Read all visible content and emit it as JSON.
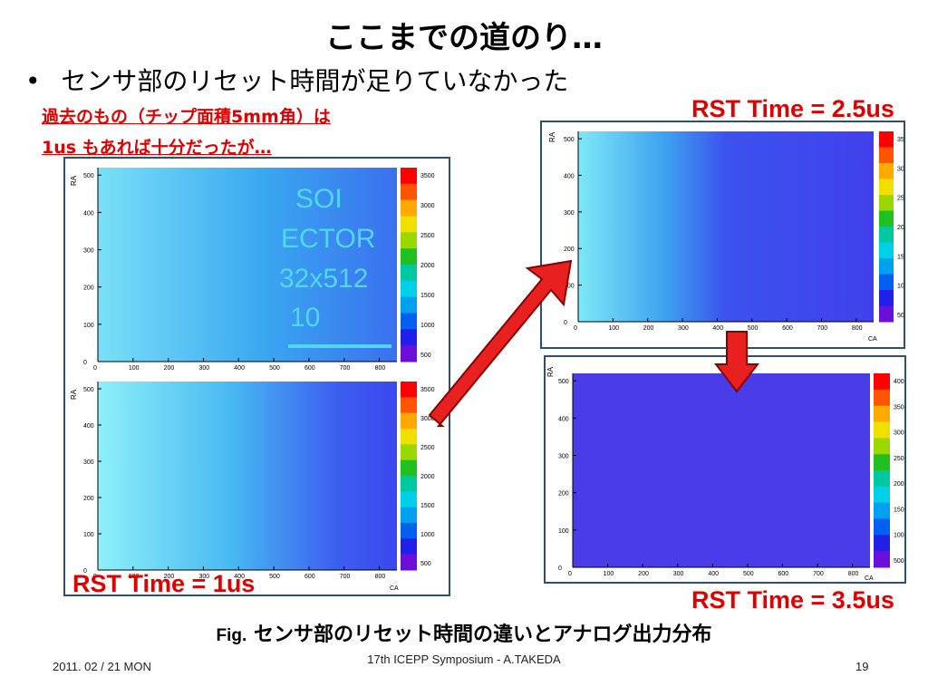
{
  "slide": {
    "title": "ここまでの道のり…",
    "bullet_marker": "•",
    "bullet": "センサ部のリセット時間が足りていなかった",
    "note_line1": "過去のもの（チップ面積5mm角）は",
    "note_line2": "1us もあれば十分だったが…",
    "rst_top_right": "RST Time = 2.5us",
    "rst_bottom_right": "RST Time = 3.5us",
    "rst_left": "RST Time = 1us",
    "caption_prefix": "Fig.",
    "caption": "センサ部のリセット時間の違いとアナログ出力分布",
    "footer_date": "2011. 02 / 21 MON",
    "footer_center": "17th ICEPP Symposium - A.TAKEDA",
    "page_number": "19"
  },
  "plots": {
    "axis_y_label": "RA",
    "axis_x_label": "CA",
    "x_ticks": [
      "0",
      "100",
      "200",
      "300",
      "400",
      "500",
      "600",
      "700",
      "800"
    ],
    "y_ticks": [
      "0",
      "100",
      "200",
      "300",
      "400",
      "500"
    ],
    "palette_ticks_a": [
      "3500",
      "3000",
      "2500",
      "2000",
      "1500",
      "1000",
      "500"
    ],
    "palette_ticks_b": [
      "4000",
      "3500",
      "3000",
      "2500",
      "2000",
      "1500",
      "1000",
      "500"
    ],
    "overlay_text": [
      "SOI",
      "ECTOR",
      "32x512",
      "10"
    ]
  },
  "colors": {
    "accent_red": "#e00000",
    "frame": "#2f4f6f",
    "arrow": "#e82020"
  }
}
